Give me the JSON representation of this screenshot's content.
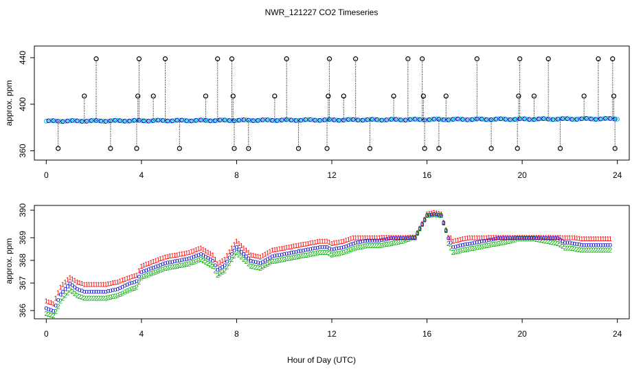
{
  "chart_data": [
    {
      "type": "scatter",
      "title": "NWR_121227  CO2 Timeseries",
      "xlabel": "",
      "ylabel": "approx. ppm",
      "xlim": [
        -0.5,
        24.5
      ],
      "ylim": [
        352,
        450
      ],
      "xticks": [
        0,
        4,
        8,
        12,
        16,
        20,
        24
      ],
      "yticks": [
        360,
        400,
        440
      ],
      "colors": {
        "raw": "#000000",
        "series_blue": "#0000cc",
        "series_cyan": "#00cccc",
        "drop_line": "#000000"
      },
      "baseline": {
        "start": 385.5,
        "end": 387.5
      },
      "raw_series": {
        "name": "raw",
        "high_spike_x": [
          2.1,
          3.9,
          5.0,
          7.2,
          7.8,
          10.1,
          11.9,
          13.0,
          15.2,
          15.8,
          18.1,
          19.9,
          21.1,
          23.2,
          23.8
        ],
        "high_spike_y": 439,
        "mid_spike_x": [
          1.6,
          3.85,
          4.5,
          6.7,
          7.85,
          9.6,
          11.85,
          12.5,
          14.6,
          15.85,
          16.8,
          19.85,
          20.5,
          22.6,
          23.85
        ],
        "mid_spike_y": 407,
        "low_spike_x": [
          0.5,
          2.7,
          3.8,
          5.6,
          7.9,
          8.5,
          10.6,
          11.8,
          13.6,
          15.9,
          16.5,
          18.7,
          19.8,
          21.6,
          23.9
        ],
        "low_spike_y": 362
      }
    },
    {
      "type": "line",
      "title": "",
      "xlabel": "Hour of Day (UTC)",
      "ylabel": "approx. ppm",
      "xlim": [
        -0.5,
        24.5
      ],
      "ylim": [
        365.6,
        390.25
      ],
      "xticks": [
        0,
        4,
        8,
        12,
        16,
        20,
        24
      ],
      "yticks": [
        366,
        367,
        368,
        369,
        390
      ],
      "series": [
        {
          "name": "1",
          "marker": "1",
          "color": "#ff0000",
          "offset": 0.25
        },
        {
          "name": "2",
          "marker": "2",
          "color": "#00aa00",
          "offset": -0.25
        },
        {
          "name": "3",
          "marker": "o",
          "color": "#0000cc",
          "offset": 0
        }
      ],
      "x": [
        0.0,
        0.3,
        0.6,
        1.0,
        1.3,
        1.6,
        2.0,
        2.5,
        3.0,
        3.5,
        3.8,
        4.0,
        4.5,
        5.0,
        5.5,
        6.0,
        6.5,
        7.0,
        7.2,
        7.5,
        7.8,
        8.0,
        8.3,
        8.6,
        9.0,
        9.5,
        10.0,
        10.5,
        11.0,
        11.5,
        11.8,
        12.0,
        12.5,
        13.0,
        13.5,
        14.0,
        14.5,
        15.0,
        15.5,
        16.0,
        16.3,
        16.6,
        16.9,
        17.1,
        17.5,
        18.0,
        18.5,
        19.0,
        19.5,
        19.8,
        20.0,
        20.5,
        21.0,
        21.5,
        21.8,
        22.0,
        22.5,
        23.0,
        23.5,
        23.7
      ],
      "y": [
        366.1,
        366.0,
        366.6,
        367.0,
        366.8,
        366.7,
        366.7,
        366.7,
        366.8,
        367.0,
        367.1,
        367.5,
        367.7,
        367.9,
        368.0,
        368.1,
        368.3,
        368.0,
        367.6,
        367.8,
        368.3,
        368.6,
        368.3,
        368.0,
        367.9,
        368.2,
        368.3,
        368.4,
        368.5,
        368.6,
        368.6,
        368.5,
        368.6,
        368.8,
        368.9,
        368.9,
        369.0,
        369.1,
        369.3,
        389.0,
        389.3,
        389.0,
        369.0,
        368.6,
        368.7,
        368.8,
        368.9,
        369.0,
        369.1,
        369.2,
        369.2,
        369.2,
        369.1,
        369.0,
        368.8,
        368.8,
        368.7,
        368.7,
        368.7,
        368.7
      ]
    }
  ]
}
